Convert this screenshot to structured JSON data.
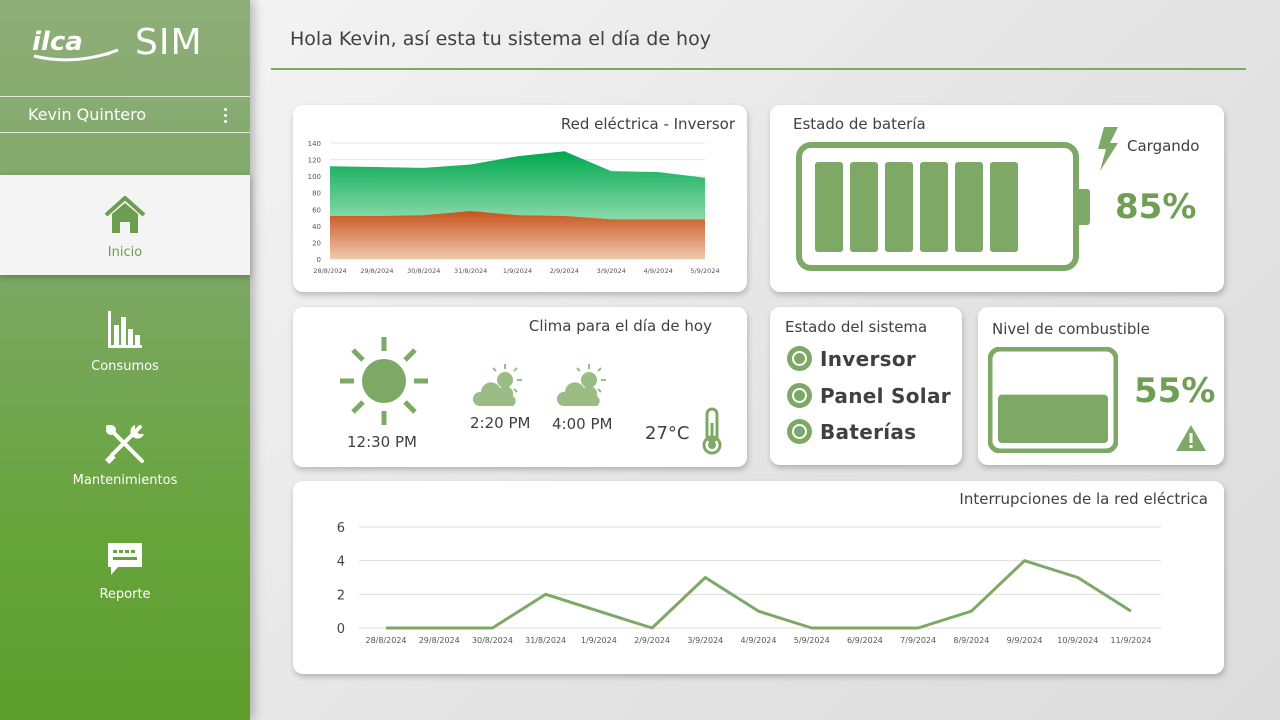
{
  "app": {
    "brand_logo": "ilca",
    "brand_name": "SIM"
  },
  "user": {
    "name": "Kevin Quintero"
  },
  "nav": [
    {
      "label": "Inicio",
      "icon": "home-icon",
      "active": true
    },
    {
      "label": "Consumos",
      "icon": "bar-chart-icon",
      "active": false
    },
    {
      "label": "Mantenimientos",
      "icon": "tools-icon",
      "active": false
    },
    {
      "label": "Reporte",
      "icon": "message-icon",
      "active": false
    }
  ],
  "header": {
    "title": "Hola Kevin, así esta tu sistema el día de hoy"
  },
  "colors": {
    "accent": "#7ea866",
    "accent_dark": "#6f9f55",
    "grid_top": "#00a84f",
    "grid_bottom": "#c7531a"
  },
  "grid_card": {
    "title": "Red eléctrica - Inversor"
  },
  "battery_card": {
    "title": "Estado de batería",
    "status": "Cargando",
    "percent": "85%",
    "percent_value": 85,
    "icon": "lightning-icon"
  },
  "weather_card": {
    "title": "Clima para el día de hoy",
    "now": {
      "time": "12:30 PM",
      "icon": "sun-icon"
    },
    "forecast": [
      {
        "time": "2:20 PM",
        "icon": "partly-cloudy-icon"
      },
      {
        "time": "4:00 PM",
        "icon": "partly-cloudy-icon"
      }
    ],
    "temperature": "27°C"
  },
  "system_card": {
    "title": "Estado del sistema",
    "items": [
      {
        "label": "Inversor"
      },
      {
        "label": "Panel Solar"
      },
      {
        "label": "Baterías"
      }
    ]
  },
  "fuel_card": {
    "title": "Nivel de combustible",
    "percent": "55%",
    "percent_value": 55,
    "icon": "warning-icon"
  },
  "outage_card": {
    "title": "Interrupciones de la red eléctrica"
  },
  "chart_data": [
    {
      "type": "area",
      "title": "Red eléctrica - Inversor",
      "categories": [
        "28/8/2024",
        "29/8/2024",
        "30/8/2024",
        "31/8/2024",
        "1/9/2024",
        "2/9/2024",
        "3/9/2024",
        "4/9/2024",
        "5/9/2024"
      ],
      "stacked": true,
      "series": [
        {
          "values": [
            52,
            52,
            53,
            58,
            53,
            52,
            48,
            48,
            48
          ]
        },
        {
          "values": [
            60,
            59,
            57,
            56,
            71,
            78,
            58,
            57,
            50
          ]
        }
      ],
      "yticks": [
        0,
        20,
        40,
        60,
        80,
        100,
        120,
        140
      ],
      "ylim": [
        0,
        140
      ],
      "grid": true
    },
    {
      "type": "line",
      "title": "Interrupciones de la red eléctrica",
      "categories": [
        "28/8/2024",
        "29/8/2024",
        "30/8/2024",
        "31/8/2024",
        "1/9/2024",
        "2/9/2024",
        "3/9/2024",
        "4/9/2024",
        "5/9/2024",
        "6/9/2024",
        "7/9/2024",
        "8/9/2024",
        "9/9/2024",
        "10/9/2024",
        "11/9/2024"
      ],
      "series": [
        {
          "values": [
            0,
            0,
            0,
            2,
            1,
            0,
            3,
            1,
            0,
            0,
            0,
            1,
            4,
            3,
            1
          ]
        }
      ],
      "yticks": [
        0,
        2,
        4,
        6
      ],
      "ylim": [
        0,
        6
      ],
      "grid": true
    }
  ]
}
